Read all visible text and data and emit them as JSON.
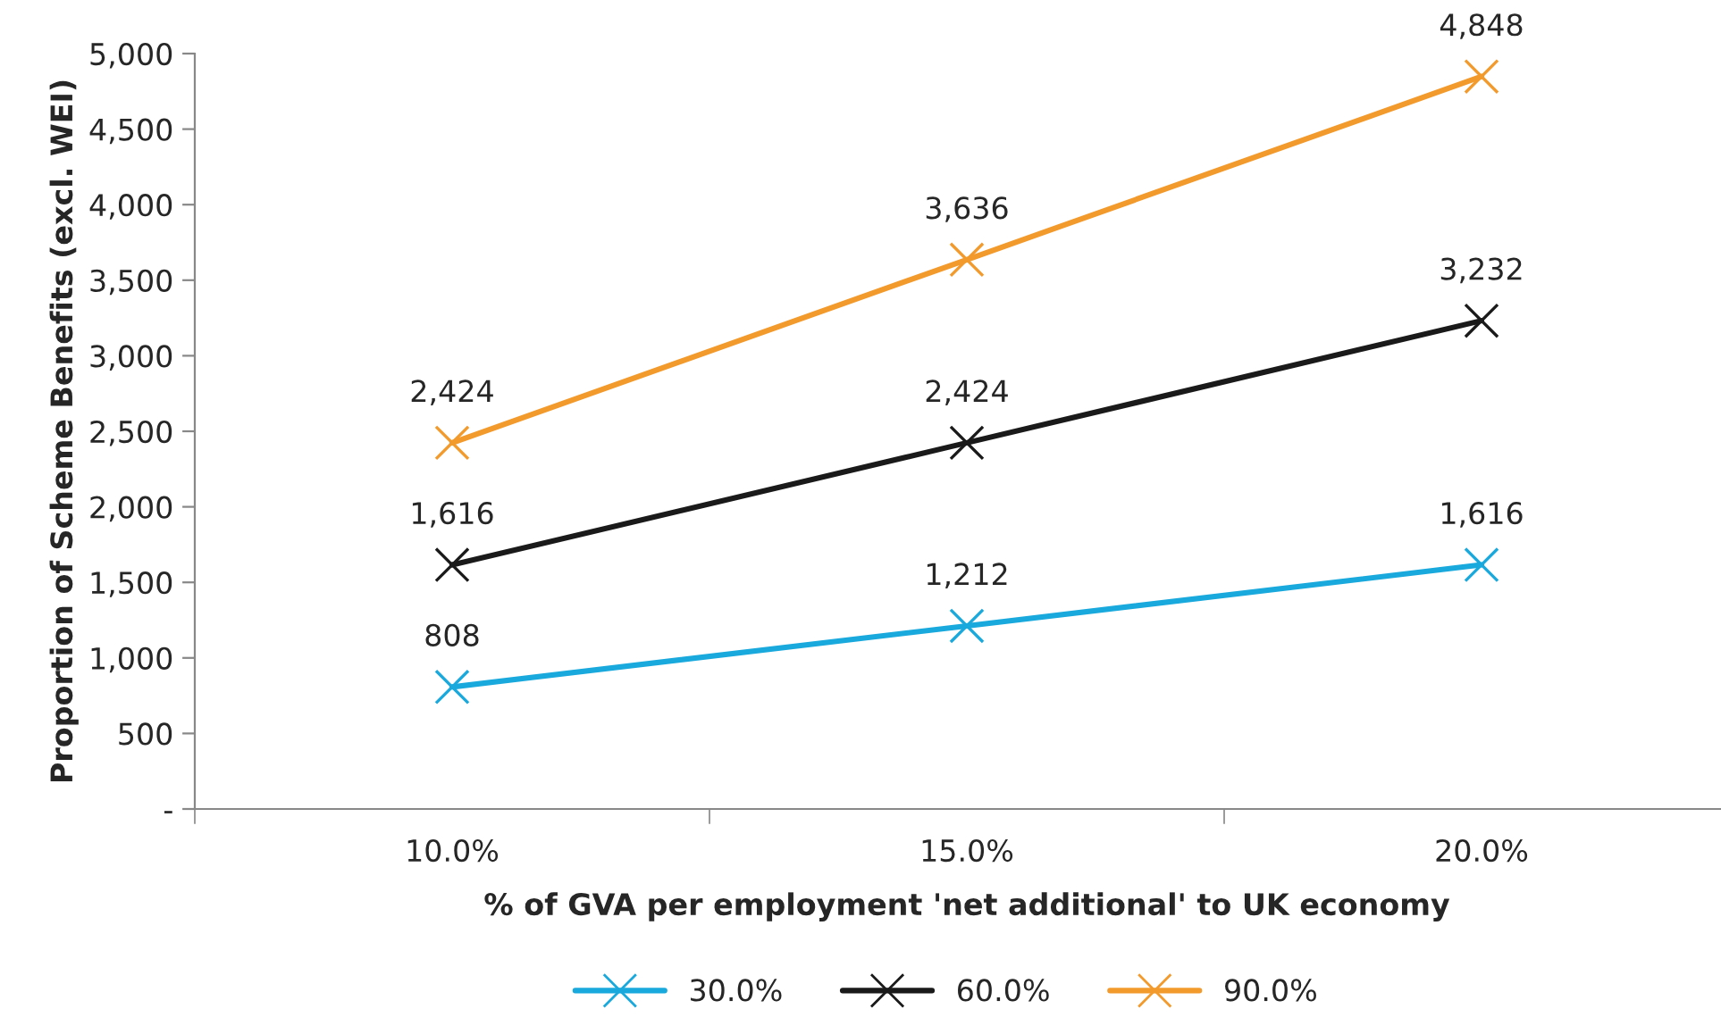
{
  "chart_data": {
    "type": "line",
    "xlabel": "% of GVA per employment 'net additional' to UK economy",
    "ylabel": "Proportion of Scheme Benefits (excl. WEI)",
    "categories": [
      "10.0%",
      "15.0%",
      "20.0%"
    ],
    "series": [
      {
        "name": "30.0%",
        "color": "#1aa9dc",
        "values": [
          808,
          1212,
          1616
        ],
        "value_labels": [
          "808",
          "1,212",
          "1,616"
        ]
      },
      {
        "name": "60.0%",
        "color": "#1a1a1a",
        "values": [
          1616,
          2424,
          3232
        ],
        "value_labels": [
          "1,616",
          "2,424",
          "3,232"
        ]
      },
      {
        "name": "90.0%",
        "color": "#f39a2c",
        "values": [
          2424,
          3636,
          4848
        ],
        "value_labels": [
          "2,424",
          "3,636",
          "4,848"
        ]
      }
    ],
    "ylim": [
      0,
      5000
    ],
    "yticks": [
      {
        "value": 0,
        "label": "-"
      },
      500,
      {
        "value": 1000,
        "label": "1,000"
      },
      {
        "value": 1500,
        "label": "1,500"
      },
      {
        "value": 2000,
        "label": "2,000"
      },
      {
        "value": 2500,
        "label": "2,500"
      },
      {
        "value": 3000,
        "label": "3,000"
      },
      {
        "value": 3500,
        "label": "3,500"
      },
      {
        "value": 4000,
        "label": "4,000"
      },
      {
        "value": 4500,
        "label": "4,500"
      },
      {
        "value": 5000,
        "label": "5,000"
      }
    ],
    "grid": false,
    "legend": "bottom",
    "marker": "cross",
    "line_style": "solid"
  }
}
